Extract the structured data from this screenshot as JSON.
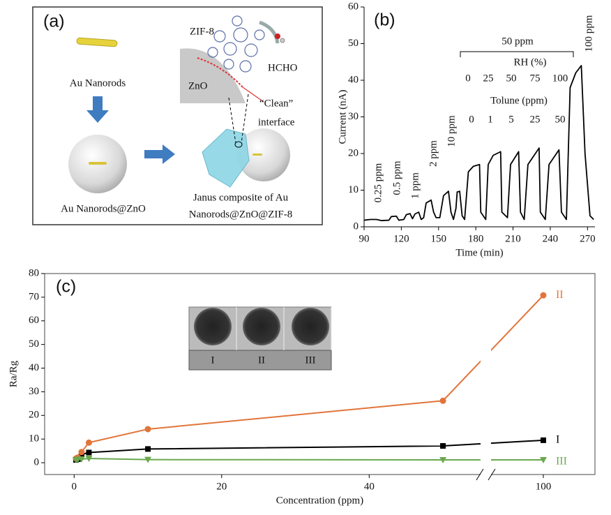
{
  "diagram": {
    "label": "(a)",
    "zif": "ZIF-8",
    "hcho": "HCHO",
    "zno": "ZnO",
    "rods": "Au Nanorods",
    "clean1": "“Clean”",
    "clean2": "interface",
    "core": "Au Nanorods@ZnO",
    "janus1": "Janus composite of Au",
    "janus2": "Nanorods@ZnO@ZIF-8"
  },
  "chart_data": [
    {
      "type": "line",
      "panel_label": "(b)",
      "x_label": "Time (min)",
      "y_label": "Current (nA)",
      "xlim": [
        90,
        276
      ],
      "ylim": [
        0,
        60
      ],
      "xticks": [
        90,
        120,
        150,
        180,
        210,
        240,
        270
      ],
      "yticks": [
        0,
        10,
        20,
        30,
        40,
        50,
        60
      ],
      "x": [
        90,
        95,
        100,
        104,
        110,
        112,
        116,
        118,
        122,
        124,
        127,
        129,
        131,
        134,
        136,
        138,
        140,
        144,
        146,
        148,
        151,
        154,
        158,
        160,
        162,
        164,
        165,
        167,
        169,
        171,
        174,
        178,
        183,
        184,
        188,
        190,
        194,
        200,
        201,
        205.5,
        208,
        214.5,
        216,
        219,
        222,
        231,
        232,
        236,
        239,
        247,
        249,
        253,
        256,
        260.5,
        265,
        268,
        272,
        275
      ],
      "series": [
        {
          "color": "#000000",
          "values": [
            1.8,
            2,
            2,
            1.7,
            1.8,
            2.8,
            2.9,
            1.8,
            2,
            3.3,
            3.6,
            2.2,
            3.5,
            4,
            2,
            2.5,
            6.5,
            7.3,
            4,
            2.5,
            2.5,
            8.5,
            9.7,
            4,
            2,
            5,
            9.5,
            9.7,
            3,
            2,
            15,
            16.5,
            17,
            4,
            2,
            17,
            19.5,
            20.5,
            4,
            2.5,
            17,
            20.5,
            4,
            2,
            17,
            21.5,
            4,
            2,
            17,
            21,
            4,
            2,
            38,
            42,
            44,
            20,
            3,
            2
          ]
        }
      ],
      "annotations": [
        "0.25 ppm",
        "0.5 ppm",
        "1 ppm",
        "2 ppm",
        "10 ppm",
        "50 ppm",
        "RH (%)",
        "0",
        "25",
        "50",
        "75",
        "100",
        "Tolune (ppm)",
        "0",
        "1",
        "5",
        "25",
        "50",
        "100 ppm"
      ]
    },
    {
      "type": "line",
      "panel_label": "(c)",
      "x_label": "Concentration (ppm)",
      "y_label": "Ra/Rg",
      "xlim": [
        -4,
        107
      ],
      "xbreak": [
        55,
        93
      ],
      "ylim": [
        -5,
        80
      ],
      "xticks": [
        0,
        20,
        40,
        100
      ],
      "yticks": [
        0,
        10,
        20,
        30,
        40,
        50,
        60,
        70,
        80
      ],
      "x": [
        0.25,
        0.5,
        1,
        2,
        10,
        50,
        100
      ],
      "series": [
        {
          "name": "I",
          "color": "#000000",
          "marker": "square",
          "values": [
            1.2,
            1.5,
            3.5,
            4.3,
            5.8,
            7.1,
            9.5
          ]
        },
        {
          "name": "II",
          "color": "#e2743a",
          "marker": "circle",
          "values": [
            1.8,
            2.2,
            4.5,
            8.5,
            14.2,
            26.2,
            70.8
          ]
        },
        {
          "name": "III",
          "color": "#6aa84f",
          "marker": "triangle-down",
          "values": [
            1.2,
            1.3,
            1.5,
            1.8,
            1.3,
            1.2,
            1.2
          ]
        }
      ],
      "inset_labels": [
        "I",
        "II",
        "III"
      ]
    }
  ]
}
